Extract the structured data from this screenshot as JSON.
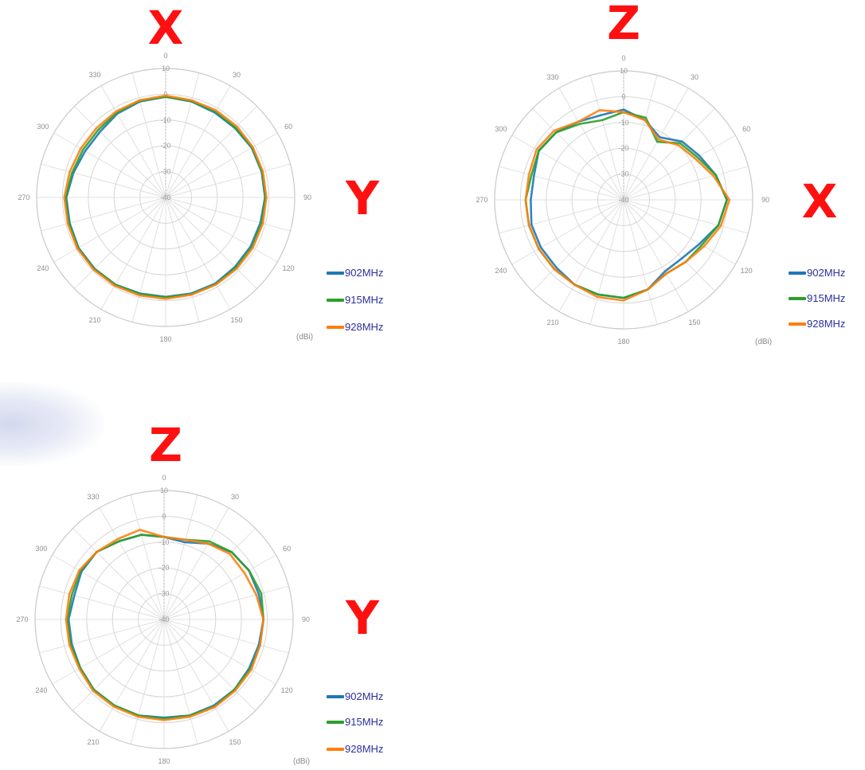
{
  "colors": {
    "902MHz": "#1f77b4",
    "915MHz": "#2ca02c",
    "928MHz": "#ff7f0e",
    "axis_letter": "#ff1010",
    "legend_text": "#2b2f9a"
  },
  "legend_items": [
    "902MHz",
    "915MHz",
    "928MHz"
  ],
  "unit": "(dBi)",
  "chart_data": [
    {
      "type": "polar-line",
      "top_letter": "X",
      "side_letter": "Y",
      "r_range": [
        -40,
        10
      ],
      "r_ticks": [
        10,
        0,
        -10,
        -20,
        -30,
        -40
      ],
      "theta_ticks": [
        0,
        30,
        60,
        90,
        120,
        150,
        180,
        210,
        240,
        270,
        300,
        330
      ],
      "unit": "(dBi)",
      "theta": [
        0,
        15,
        30,
        45,
        60,
        75,
        90,
        105,
        120,
        135,
        150,
        165,
        180,
        195,
        210,
        225,
        240,
        255,
        270,
        285,
        300,
        315,
        330,
        345
      ],
      "series": [
        {
          "name": "902MHz",
          "values": [
            -1,
            -1.5,
            -2,
            -2,
            -1.5,
            -1.5,
            -1.5,
            -2,
            -2,
            -2,
            -1.5,
            -1.5,
            -1.5,
            -1.5,
            -1,
            -1,
            -1,
            -1.5,
            -1.5,
            -3,
            -4,
            -4,
            -2.5,
            -1.5
          ]
        },
        {
          "name": "915MHz",
          "values": [
            -1,
            -1.3,
            -1.5,
            -1.7,
            -1.3,
            -1.3,
            -1.3,
            -1.5,
            -1.5,
            -1.5,
            -1.2,
            -1.2,
            -1.3,
            -1.2,
            -1,
            -0.8,
            -0.8,
            -1.2,
            -1.2,
            -2.5,
            -3,
            -3,
            -2,
            -1.2
          ]
        },
        {
          "name": "928MHz",
          "values": [
            -0.5,
            -1,
            -1,
            -1,
            -1,
            -1,
            -1,
            -1,
            -1,
            -1,
            -1,
            -1,
            -0.7,
            -0.7,
            -0.5,
            -0.5,
            -0.5,
            -0.7,
            -0.7,
            -1.5,
            -2,
            -2,
            -1.5,
            -1
          ]
        }
      ]
    },
    {
      "type": "polar-line",
      "top_letter": "Z",
      "side_letter": "X",
      "r_range": [
        -40,
        10
      ],
      "r_ticks": [
        10,
        0,
        -10,
        -20,
        -30,
        -40
      ],
      "theta_ticks": [
        0,
        30,
        60,
        90,
        120,
        150,
        180,
        210,
        240,
        270,
        300,
        330
      ],
      "unit": "(dBi)",
      "theta": [
        0,
        15,
        30,
        45,
        60,
        75,
        90,
        105,
        120,
        135,
        150,
        165,
        180,
        195,
        210,
        225,
        240,
        255,
        270,
        285,
        300,
        315,
        330,
        345
      ],
      "series": [
        {
          "name": "902MHz",
          "values": [
            -5,
            -8,
            -12,
            -8,
            -6,
            -3,
            0,
            -2,
            -6,
            -8,
            -8,
            -4,
            -2,
            -2,
            -2,
            -3,
            -3,
            -3,
            -4,
            -4,
            -2,
            -3,
            -5,
            -6
          ]
        },
        {
          "name": "915MHz",
          "values": [
            -6,
            -7,
            -14,
            -9,
            -7,
            -3,
            0,
            -2,
            -5,
            -6,
            -7,
            -4,
            -2,
            -2,
            -2,
            -2,
            -2,
            -2,
            -2,
            -3,
            -2,
            -3,
            -6,
            -8
          ]
        },
        {
          "name": "928MHz",
          "values": [
            -6,
            -8,
            -13,
            -10,
            -8,
            -4,
            1,
            -1,
            -4,
            -6,
            -7,
            -4,
            -1,
            -1,
            -2,
            -2,
            -2,
            -2,
            -2,
            -2,
            -1,
            -2,
            -5,
            -4
          ]
        }
      ]
    },
    {
      "type": "polar-line",
      "top_letter": "Z",
      "side_letter": "Y",
      "r_range": [
        -40,
        10
      ],
      "r_ticks": [
        10,
        0,
        -10,
        -20,
        -30,
        -40
      ],
      "theta_ticks": [
        0,
        30,
        60,
        90,
        120,
        150,
        180,
        210,
        240,
        270,
        300,
        330
      ],
      "unit": "(dBi)",
      "theta": [
        0,
        15,
        30,
        45,
        60,
        75,
        90,
        105,
        120,
        135,
        150,
        165,
        180,
        195,
        210,
        225,
        240,
        255,
        270,
        285,
        300,
        315,
        330,
        345
      ],
      "series": [
        {
          "name": "902MHz",
          "values": [
            -8,
            -9,
            -6,
            -3,
            -2,
            -2,
            -1.5,
            -2,
            -2,
            -1.5,
            -1.5,
            -1.5,
            -2,
            -1.5,
            -1.5,
            -1.5,
            -2.5,
            -3,
            -3,
            -4,
            -3,
            -3,
            -5,
            -6
          ]
        },
        {
          "name": "915MHz",
          "values": [
            -8,
            -8,
            -5,
            -3,
            -2,
            -1,
            -1.5,
            -1.5,
            -1.5,
            -1.5,
            -1,
            -1.5,
            -1.5,
            -1.5,
            -1.5,
            -1.5,
            -2.5,
            -2.5,
            -2.5,
            -3,
            -2.5,
            -3,
            -5,
            -6
          ]
        },
        {
          "name": "928MHz",
          "values": [
            -8,
            -8,
            -6,
            -4,
            -4,
            -3,
            -1.5,
            -1.5,
            -1,
            -1,
            -0.8,
            -1,
            -1,
            -1,
            -1,
            -1,
            -2,
            -2,
            -2,
            -2,
            -2,
            -3,
            -4,
            -4
          ]
        }
      ]
    }
  ]
}
